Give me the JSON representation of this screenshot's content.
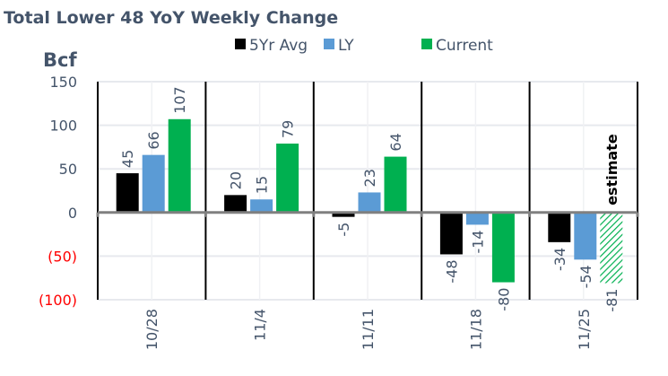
{
  "chart_data": {
    "type": "bar",
    "title": "Total Lower 48 YoY Weekly Change",
    "ylabel": "Bcf",
    "xlabel": "",
    "ylim": [
      -100,
      150
    ],
    "yticks": [
      150,
      100,
      50,
      0,
      -50,
      -100
    ],
    "ytick_labels": [
      "150",
      "100",
      "50",
      "0",
      "(50)",
      "(100)"
    ],
    "grid": true,
    "legend_position": "top-center",
    "categories": [
      "10/28",
      "11/4",
      "11/11",
      "11/18",
      "11/25"
    ],
    "series": [
      {
        "name": "5Yr Avg",
        "color": "#000000",
        "values": [
          45,
          20,
          -5,
          -48,
          -34
        ]
      },
      {
        "name": "LY",
        "color": "#5b9bd5",
        "values": [
          66,
          15,
          23,
          -14,
          -54
        ]
      },
      {
        "name": "Current",
        "color": "#00b050",
        "values": [
          107,
          79,
          64,
          -80,
          -81
        ],
        "estimated": [
          false,
          false,
          false,
          false,
          true
        ]
      }
    ],
    "annotations": [
      {
        "text": "estimate",
        "category": "11/25",
        "series": "Current"
      }
    ],
    "colors": {
      "text": "#44546a",
      "negative_tick": "#ff0000",
      "grid": "#e7e9ee",
      "zero_line": "#808080"
    }
  }
}
